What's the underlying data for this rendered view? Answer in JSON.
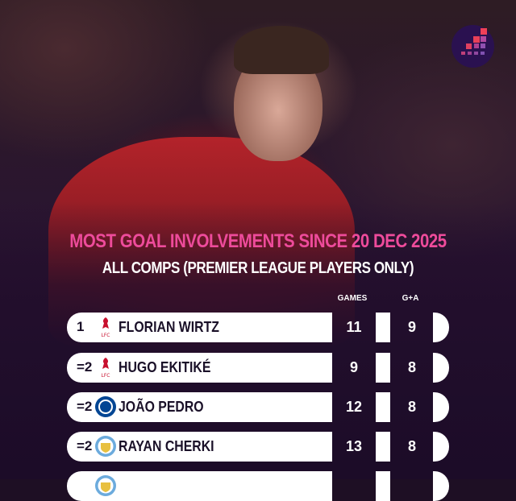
{
  "title": "MOST GOAL INVOLVEMENTS SINCE 20 DEC 2025",
  "subtitle": "ALL COMPS (PREMIER LEAGUE PLAYERS ONLY)",
  "columns": {
    "games": "GAMES",
    "ga": "G+A"
  },
  "colors": {
    "accent": "#ee4b9b",
    "background": "#1e0f24",
    "liverpool": "#c8102e",
    "chelsea": "#034694",
    "mancity": "#6cabdd"
  },
  "rows": [
    {
      "rank": "1",
      "crest": "liverpool-crest-icon",
      "name": "FLORIAN WIRTZ",
      "games": "11",
      "ga": "9"
    },
    {
      "rank": "=2",
      "crest": "liverpool-crest-icon",
      "name": "HUGO EKITIKÉ",
      "games": "9",
      "ga": "8"
    },
    {
      "rank": "=2",
      "crest": "chelsea-crest-icon",
      "name": "JOÃO PEDRO",
      "games": "12",
      "ga": "8"
    },
    {
      "rank": "=2",
      "crest": "man-city-crest-icon",
      "name": "RAYAN CHERKI",
      "games": "13",
      "ga": "8"
    },
    {
      "rank": "",
      "crest": "man-city-crest-icon",
      "name": "",
      "games": "",
      "ga": ""
    }
  ]
}
